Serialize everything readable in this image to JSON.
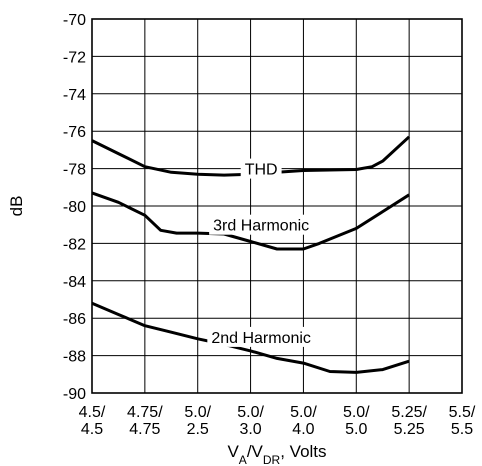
{
  "chart_data": {
    "type": "line",
    "title": "",
    "ylabel": "dB",
    "xlabel": {
      "main": "V",
      "sub1": "A",
      "mid": "/V",
      "sub2": "DR",
      "tail": ", Volts"
    },
    "ylim": [
      -90,
      -70
    ],
    "yticks": [
      -70,
      -72,
      -74,
      -76,
      -78,
      -80,
      -82,
      -84,
      -86,
      -88,
      -90
    ],
    "categories": [
      [
        "4.5/",
        "4.5"
      ],
      [
        "4.75/",
        "4.75"
      ],
      [
        "5.0/",
        "2.5"
      ],
      [
        "5.0/",
        "3.0"
      ],
      [
        "5.0/",
        "4.0"
      ],
      [
        "5.0/",
        "5.0"
      ],
      [
        "5.25/",
        "5.25"
      ],
      [
        "5.5/",
        "5.5"
      ]
    ],
    "grid": true,
    "series": [
      {
        "name": "THD",
        "label_at": [
          3.2,
          -78.0
        ],
        "points": [
          [
            0,
            -76.5
          ],
          [
            0.5,
            -77.2
          ],
          [
            1,
            -77.9
          ],
          [
            1.5,
            -78.2
          ],
          [
            2,
            -78.3
          ],
          [
            2.5,
            -78.35
          ],
          [
            3,
            -78.3
          ],
          [
            3.5,
            -78.2
          ],
          [
            4,
            -78.1
          ],
          [
            5,
            -78.05
          ],
          [
            5.3,
            -77.9
          ],
          [
            5.5,
            -77.6
          ],
          [
            6,
            -76.3
          ]
        ]
      },
      {
        "name": "3rd Harmonic",
        "label_at": [
          3.2,
          -81.0
        ],
        "points": [
          [
            0,
            -79.3
          ],
          [
            0.5,
            -79.8
          ],
          [
            1,
            -80.5
          ],
          [
            1.3,
            -81.3
          ],
          [
            1.6,
            -81.45
          ],
          [
            2,
            -81.45
          ],
          [
            2.5,
            -81.5
          ],
          [
            3,
            -81.9
          ],
          [
            3.5,
            -82.3
          ],
          [
            4,
            -82.3
          ],
          [
            4.3,
            -82.0
          ],
          [
            5,
            -81.2
          ],
          [
            5.5,
            -80.3
          ],
          [
            6,
            -79.4
          ]
        ]
      },
      {
        "name": "2nd Harmonic",
        "label_at": [
          3.2,
          -87.0
        ],
        "points": [
          [
            0,
            -85.2
          ],
          [
            0.5,
            -85.8
          ],
          [
            1,
            -86.4
          ],
          [
            1.5,
            -86.75
          ],
          [
            2,
            -87.1
          ],
          [
            2.5,
            -87.4
          ],
          [
            3,
            -87.75
          ],
          [
            3.5,
            -88.15
          ],
          [
            4,
            -88.4
          ],
          [
            4.5,
            -88.85
          ],
          [
            5,
            -88.9
          ],
          [
            5.5,
            -88.75
          ],
          [
            6,
            -88.3
          ]
        ]
      }
    ]
  }
}
